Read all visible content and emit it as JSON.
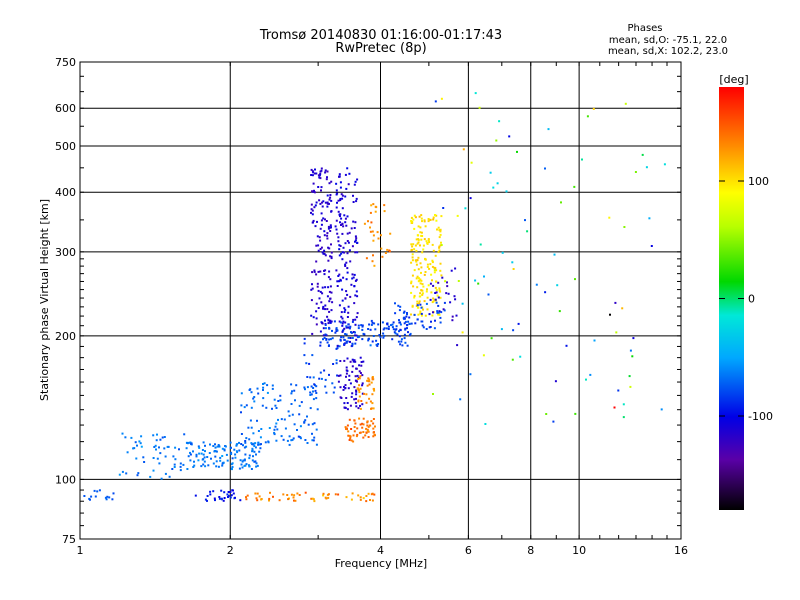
{
  "chart_data": {
    "type": "scatter",
    "title": "Tromsø 20140830 01:16:00-01:17:43",
    "subtitle": "RwPretec (8p)",
    "xlabel": "Frequency [MHz]",
    "ylabel": "Stationary phase Virtual Height [km]",
    "x_scale": "log",
    "y_scale": "log",
    "xlim": [
      1,
      16
    ],
    "ylim": [
      75,
      750
    ],
    "x_ticks": [
      "1",
      "2",
      "4",
      "6",
      "8",
      "10",
      "16"
    ],
    "x_tick_values": [
      1,
      2,
      4,
      6,
      8,
      10,
      16
    ],
    "y_ticks": [
      "75",
      "100",
      "200",
      "300",
      "400",
      "500",
      "600",
      "750"
    ],
    "y_tick_values": [
      75,
      100,
      200,
      300,
      400,
      500,
      600,
      750
    ],
    "grid": true,
    "info": {
      "heading": "Phases",
      "line_o": "mean, sd,O: -75.1, 22.0",
      "line_x": "mean, sd,X: 102.2, 23.0"
    },
    "colorbar": {
      "unit_label": "[deg]",
      "range": [
        -180,
        180
      ],
      "ticks": [
        "100",
        "0",
        "-100"
      ],
      "tick_values": [
        100,
        0,
        -100
      ]
    },
    "clusters": [
      {
        "freq": [
          1.0,
          1.2
        ],
        "height": [
          90,
          95
        ],
        "phase": -75,
        "spread": 6,
        "count": 14
      },
      {
        "freq": [
          1.2,
          1.65
        ],
        "height": [
          100,
          125
        ],
        "phase": -65,
        "spread": 12,
        "count": 60
      },
      {
        "freq": [
          1.65,
          2.3
        ],
        "height": [
          105,
          120
        ],
        "phase": -65,
        "spread": 10,
        "count": 130
      },
      {
        "freq": [
          2.1,
          3.0
        ],
        "height": [
          118,
          160
        ],
        "phase": -70,
        "spread": 12,
        "count": 120
      },
      {
        "freq": [
          2.8,
          3.3
        ],
        "height": [
          150,
          200
        ],
        "phase": -80,
        "spread": 12,
        "count": 40
      },
      {
        "freq": [
          1.7,
          2.1
        ],
        "height": [
          90,
          95
        ],
        "phase": -95,
        "spread": 10,
        "count": 30
      },
      {
        "freq": [
          2.15,
          3.9
        ],
        "height": [
          90,
          94
        ],
        "phase": 130,
        "spread": 25,
        "count": 55
      },
      {
        "freq": [
          2.9,
          3.2
        ],
        "height": [
          200,
          450
        ],
        "phase": -115,
        "spread": 12,
        "count": 170
      },
      {
        "freq": [
          3.25,
          3.6
        ],
        "height": [
          190,
          450
        ],
        "phase": -110,
        "spread": 12,
        "count": 160
      },
      {
        "freq": [
          3.3,
          3.7
        ],
        "height": [
          140,
          180
        ],
        "phase": -115,
        "spread": 10,
        "count": 70
      },
      {
        "freq": [
          3.1,
          4.6
        ],
        "height": [
          190,
          215
        ],
        "phase": -80,
        "spread": 12,
        "count": 120
      },
      {
        "freq": [
          3.4,
          3.9
        ],
        "height": [
          120,
          135
        ],
        "phase": 140,
        "spread": 15,
        "count": 60
      },
      {
        "freq": [
          3.6,
          3.9
        ],
        "height": [
          140,
          165
        ],
        "phase": 130,
        "spread": 15,
        "count": 40
      },
      {
        "freq": [
          3.7,
          4.2
        ],
        "height": [
          280,
          380
        ],
        "phase": 130,
        "spread": 20,
        "count": 30
      },
      {
        "freq": [
          4.6,
          5.3
        ],
        "height": [
          220,
          360
        ],
        "phase": 100,
        "spread": 12,
        "count": 180
      },
      {
        "freq": [
          4.2,
          5.4
        ],
        "height": [
          205,
          235
        ],
        "phase": -80,
        "spread": 12,
        "count": 55
      },
      {
        "freq": [
          5.0,
          5.7
        ],
        "height": [
          215,
          280
        ],
        "phase": -115,
        "spread": 10,
        "count": 25
      },
      {
        "freq": [
          5.0,
          15.0
        ],
        "height": [
          130,
          650
        ],
        "phase": 0,
        "spread": 150,
        "count": 90
      }
    ]
  }
}
